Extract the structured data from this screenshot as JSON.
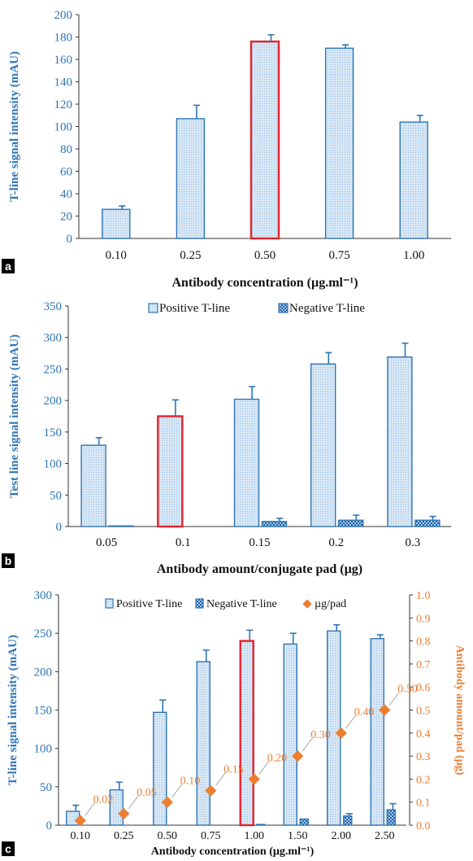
{
  "chart_data": [
    {
      "type": "bar",
      "panel_label": "a",
      "categories": [
        "0.10",
        "0.25",
        "0.50",
        "0.75",
        "1.00"
      ],
      "series": [
        {
          "values": [
            26,
            107,
            176,
            170,
            104
          ],
          "errors": [
            3,
            12,
            6,
            3,
            6
          ]
        }
      ],
      "highlight_index": 2,
      "ylim": [
        0,
        200
      ],
      "yticks": [
        "0",
        "20",
        "40",
        "60",
        "80",
        "100",
        "120",
        "140",
        "160",
        "180",
        "200"
      ],
      "ylabel": "T-line signal intensity (mAU)",
      "xlabel": "Antibody concentration (µg.ml⁻¹)",
      "grid": false,
      "colors": {
        "bar_edge": "#2e75b6",
        "bar_fill": "#dbe9f6",
        "highlight_edge": "#e8202a",
        "axis_text": "#2e75b6"
      }
    },
    {
      "type": "bar",
      "panel_label": "b",
      "categories": [
        "0.05",
        "0.1",
        "0.15",
        "0.2",
        "0.3"
      ],
      "series": [
        {
          "name": "Positive T-line",
          "values": [
            129,
            175,
            202,
            258,
            269
          ],
          "errors": [
            12,
            26,
            20,
            18,
            22
          ]
        },
        {
          "name": "Negative T-line",
          "values": [
            1,
            0,
            8,
            10,
            10
          ],
          "errors": [
            0,
            0,
            5,
            8,
            6
          ]
        }
      ],
      "highlight_index": 1,
      "ylim": [
        0,
        350
      ],
      "yticks": [
        "0",
        "50",
        "100",
        "150",
        "200",
        "250",
        "300",
        "350"
      ],
      "ylabel": "Test line signal intensity (mAU)",
      "xlabel": "Antibody amount/conjugate pad (µg)",
      "legend_position": "top",
      "grid": false,
      "colors": {
        "bar_edge": "#2e75b6",
        "bar_fill": "#dbe9f6",
        "neg_fill": "#7fb0dc",
        "highlight_edge": "#e8202a",
        "axis_text": "#2e75b6"
      }
    },
    {
      "type": "bar",
      "panel_label": "c",
      "categories": [
        "0.10",
        "0.25",
        "0.50",
        "0.75",
        "1.00",
        "1.50",
        "2.00",
        "2.50"
      ],
      "series": [
        {
          "name": "Positive T-line",
          "values": [
            18,
            46,
            147,
            213,
            240,
            236,
            253,
            243
          ],
          "errors": [
            8,
            10,
            16,
            15,
            14,
            14,
            8,
            5
          ]
        },
        {
          "name": "Negative T-line",
          "values": [
            0,
            0,
            0,
            0,
            1,
            8,
            12,
            20
          ],
          "errors": [
            0,
            0,
            0,
            0,
            0,
            0,
            3,
            8
          ]
        },
        {
          "name": "µg/pad",
          "axis": "right",
          "values": [
            0.02,
            0.05,
            0.1,
            0.15,
            0.2,
            0.3,
            0.4,
            0.5
          ],
          "labels": [
            "0.02",
            "0.05",
            "0.10",
            "0.15",
            "0.20",
            "0.30",
            "0.40",
            "0.50"
          ]
        }
      ],
      "highlight_index": 4,
      "ylim": [
        0,
        300
      ],
      "yticks": [
        "0",
        "50",
        "100",
        "150",
        "200",
        "250",
        "300"
      ],
      "y2lim": [
        0,
        1.0
      ],
      "y2ticks": [
        "0.0",
        "0.1",
        "0.2",
        "0.3",
        "0.4",
        "0.5",
        "0.6",
        "0.7",
        "0.8",
        "0.9",
        "1.0"
      ],
      "ylabel": "T-line signal intensity (mAU)",
      "y2label": "Antibody amount/pad (µg)",
      "xlabel": "Antibody concentration (µg.ml⁻¹)",
      "legend_position": "top",
      "grid": false,
      "colors": {
        "bar_edge": "#2e75b6",
        "bar_fill": "#dbe9f6",
        "neg_fill": "#3d7fc0",
        "highlight_edge": "#e8202a",
        "axis_text": "#2e75b6",
        "marker": "#ed7d31",
        "marker_line": "#a6a6a6"
      }
    }
  ]
}
